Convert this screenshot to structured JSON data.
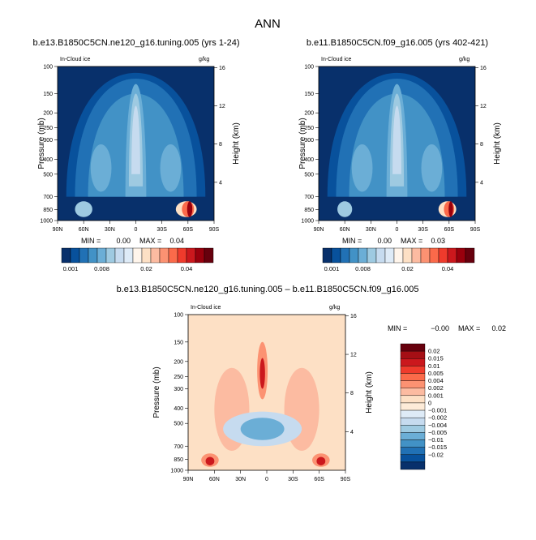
{
  "figure": {
    "title": "ANN",
    "colormap_positive": [
      "#08306b",
      "#08519c",
      "#2171b5",
      "#4292c6",
      "#6baed6",
      "#9ecae1",
      "#c6dbef",
      "#deebf7",
      "#fff5eb",
      "#fde0c5",
      "#fcbba1",
      "#fc9272",
      "#fb6a4a",
      "#ef3b2c",
      "#cb181d",
      "#99000d",
      "#67000d"
    ],
    "colormap_diverging": [
      "#67000d",
      "#a50f15",
      "#cb181d",
      "#ef3b2c",
      "#fb6a4a",
      "#fc9272",
      "#fcbba1",
      "#fde0c5",
      "#fdebd8",
      "#deebf7",
      "#c6dbef",
      "#9ecae1",
      "#6baed6",
      "#4292c6",
      "#2171b5",
      "#08519c",
      "#08306b"
    ]
  },
  "chart_data": [
    {
      "type": "heatmap",
      "title": "b.e13.B1850C5CN.ne120_g16.tuning.005 (yrs 1-24)",
      "variable": "In-Cloud ice",
      "units": "g/kg",
      "xlabel": "",
      "ylabel": "Pressure (mb)",
      "y2label": "Height (km)",
      "x_ticks": [
        "90N",
        "60N",
        "30N",
        "0",
        "30S",
        "60S",
        "90S"
      ],
      "y_ticks": [
        100,
        150,
        200,
        250,
        300,
        400,
        500,
        700,
        850,
        1000
      ],
      "y2_ticks": [
        16,
        12,
        8,
        4
      ],
      "xlim": [
        90,
        -90
      ],
      "ylim": [
        1000,
        100
      ],
      "min_label": "MIN =",
      "min_value": "0.00",
      "max_label": "MAX =",
      "max_value": "0.04",
      "max": 0.04,
      "colorbar_labels": [
        "0.001",
        "0.008",
        "0.02",
        "0.04"
      ]
    },
    {
      "type": "heatmap",
      "title": "b.e11.B1850C5CN.f09_g16.005 (yrs 402-421)",
      "variable": "In-Cloud ice",
      "units": "g/kg",
      "xlabel": "",
      "ylabel": "Pressure (mb)",
      "y2label": "Height (km)",
      "x_ticks": [
        "90N",
        "60N",
        "30N",
        "0",
        "30S",
        "60S",
        "90S"
      ],
      "y_ticks": [
        100,
        150,
        200,
        250,
        300,
        400,
        500,
        700,
        850,
        1000
      ],
      "y2_ticks": [
        16,
        12,
        8,
        4
      ],
      "xlim": [
        90,
        -90
      ],
      "ylim": [
        1000,
        100
      ],
      "min_label": "MIN =",
      "min_value": "0.00",
      "max_label": "MAX =",
      "max_value": "0.03",
      "max": 0.03,
      "colorbar_labels": [
        "0.001",
        "0.008",
        "0.02",
        "0.04"
      ]
    },
    {
      "type": "heatmap",
      "title": "b.e13.B1850C5CN.ne120_g16.tuning.005 – b.e11.B1850C5CN.f09_g16.005",
      "variable": "In-Cloud ice",
      "units": "g/kg",
      "xlabel": "",
      "ylabel": "Pressure (mb)",
      "y2label": "Height (km)",
      "x_ticks": [
        "90N",
        "60N",
        "30N",
        "0",
        "30S",
        "60S",
        "90S"
      ],
      "y_ticks": [
        100,
        150,
        200,
        250,
        300,
        400,
        500,
        700,
        850,
        1000
      ],
      "y2_ticks": [
        16,
        12,
        8,
        4
      ],
      "xlim": [
        90,
        -90
      ],
      "ylim": [
        1000,
        100
      ],
      "min_label": "MIN =",
      "min_value": "−0.00",
      "max_label": "MAX =",
      "max_value": "0.02",
      "max": 0.02,
      "colorbar_labels": [
        "0.02",
        "0.015",
        "0.01",
        "0.005",
        "0.004",
        "0.002",
        "0.001",
        "0",
        "−0.001",
        "−0.002",
        "−0.004",
        "−0.005",
        "−0.01",
        "−0.015",
        "−0.02"
      ]
    }
  ]
}
